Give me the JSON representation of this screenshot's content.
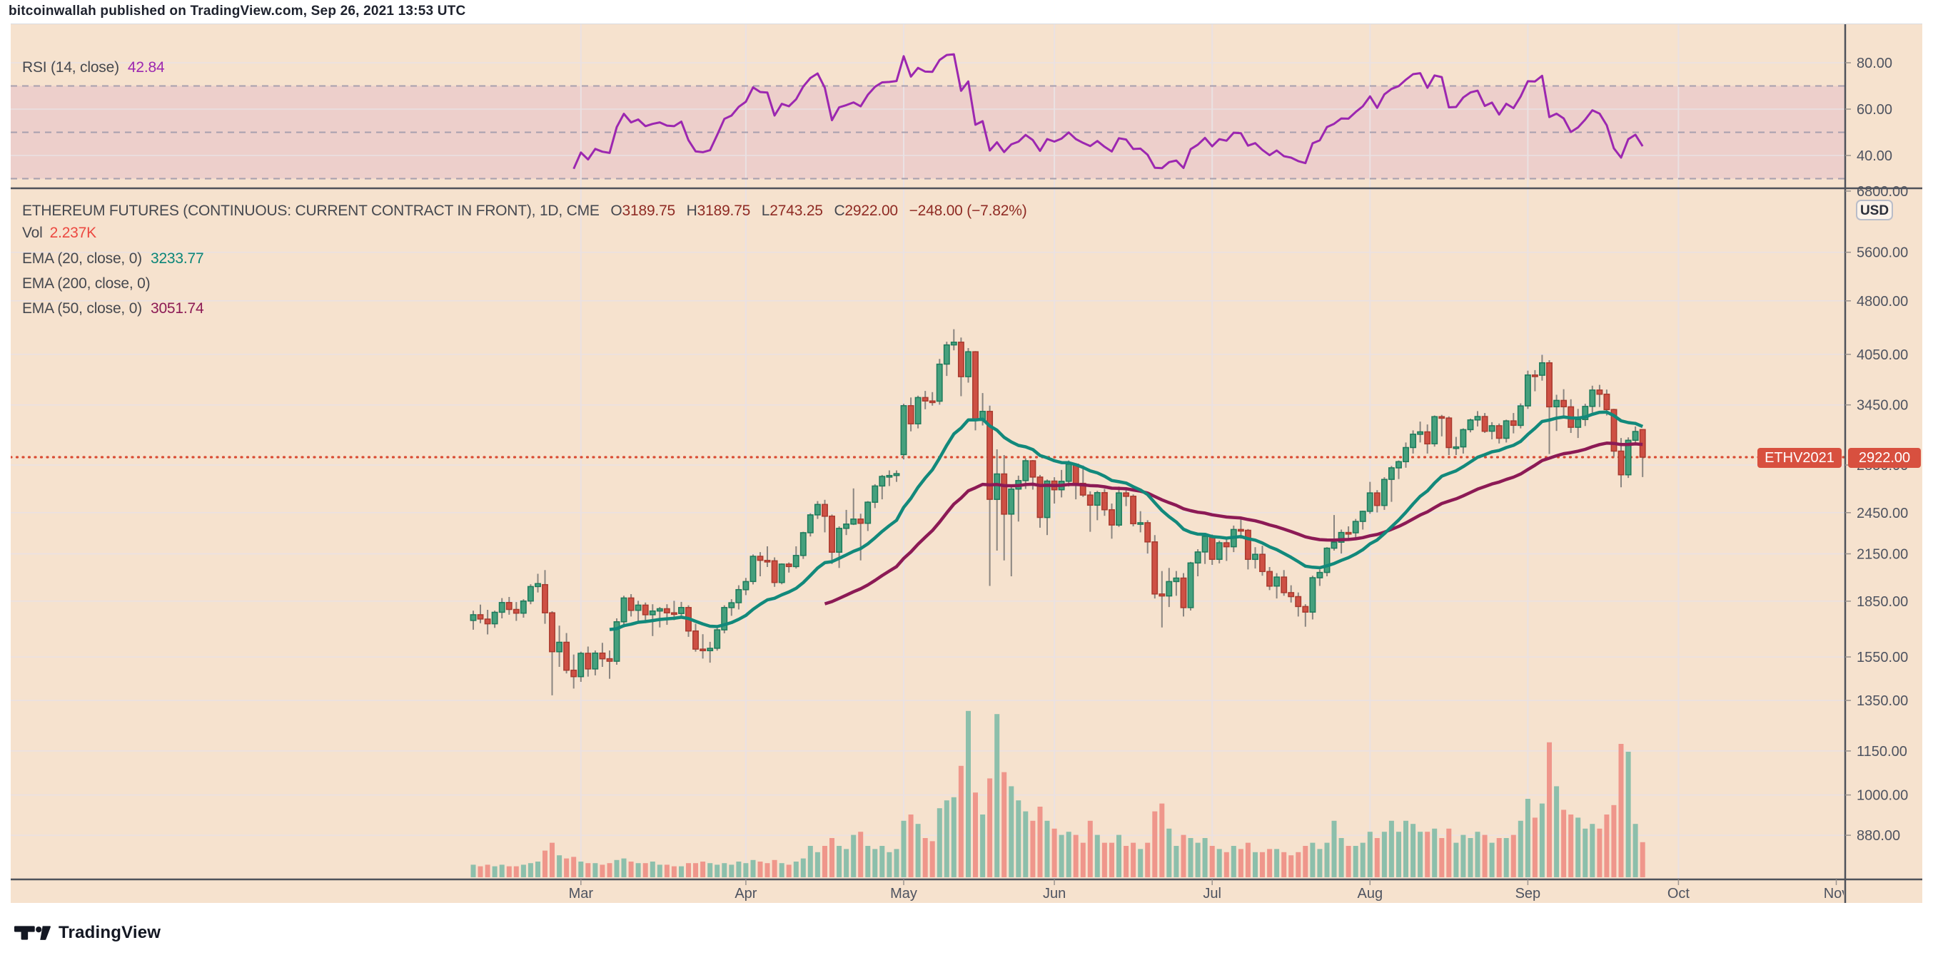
{
  "header": {
    "byline": "bitcoinwallah published on TradingView.com, Sep 26, 2021 13:53 UTC"
  },
  "rsi_pane": {
    "label": "RSI (14, close)",
    "value": "42.84",
    "ticks": [
      80,
      60,
      40
    ],
    "band_upper": 70,
    "band_mid": 50,
    "band_lower": 30
  },
  "main_pane": {
    "title": "ETHEREUM FUTURES (CONTINUOUS: CURRENT CONTRACT IN FRONT), 1D, CME",
    "ohlc": {
      "o_label": "O",
      "o": "3189.75",
      "h_label": "H",
      "h": "3189.75",
      "l_label": "L",
      "l": "2743.25",
      "c_label": "C",
      "c": "2922.00",
      "change": "−248.00 (−7.82%)"
    },
    "vol_label": "Vol",
    "vol_value": "2.237K",
    "ema20_label": "EMA (20, close, 0)",
    "ema20_value": "3233.77",
    "ema200_label": "EMA (200, close, 0)",
    "ema200_value": "",
    "ema50_label": "EMA (50, close, 0)",
    "ema50_value": "3051.74",
    "usd_button": "USD",
    "symbol_badge": "ETHV2021",
    "price_badge": "2922.00"
  },
  "logo": {
    "text": "TradingView"
  },
  "colors": {
    "background": "#f6e2ce",
    "grid": "#eae1e3",
    "separator": "#4f525a",
    "axis_text": "#4e5360",
    "tick_mark": "#9b948f",
    "candle_up_fill": "#45a07d",
    "candle_up_border": "#1d7a5b",
    "candle_down_fill": "#ce5044",
    "candle_down_border": "#a93a2e",
    "wick": "#8a8580",
    "vol_up": "#8cbfab",
    "vol_down": "#ef968b",
    "ema20": "#12897b",
    "ema50": "#8c1a55",
    "rsi_line": "#9c27b0",
    "rsi_band_fill": "rgba(156,39,176,0.10)",
    "rsi_dashed": "#a79fae",
    "last_price_line": "#d94b33",
    "badge": "#d8503f"
  },
  "chart_data": {
    "type": "candlestick",
    "symbol": "ETHV2021",
    "period": "1D",
    "exchange": "CME",
    "last_close": 2922.0,
    "prev_close": 3170.0,
    "price_ticks": [
      6800,
      5600,
      4800,
      4050,
      3450,
      2850,
      2450,
      2150,
      1850,
      1550,
      1350,
      1150,
      1000,
      880
    ],
    "rsi_ticks": [
      80,
      60,
      40
    ],
    "rsi_period": 14,
    "ema_periods": [
      20,
      200,
      50
    ],
    "rsi_last": 42.84,
    "ema20_last": 3233.77,
    "ema50_last": 3051.74,
    "vol_last_k": 2.237,
    "months": [
      {
        "label": "Mar",
        "bar": 15,
        "grid": true
      },
      {
        "label": "Apr",
        "bar": 38,
        "grid": true
      },
      {
        "label": "May",
        "bar": 60,
        "grid": true
      },
      {
        "label": "Jun",
        "bar": 81,
        "grid": true
      },
      {
        "label": "Jul",
        "bar": 103,
        "grid": true
      },
      {
        "label": "Aug",
        "bar": 125,
        "grid": true
      },
      {
        "label": "Sep",
        "bar": 147,
        "grid": true
      },
      {
        "label": "Oct",
        "bar": 168,
        "grid": true
      },
      {
        "label": "Nov",
        "bar": 190,
        "grid": false
      }
    ],
    "bars": [
      [
        1740,
        1795,
        1690,
        1772,
        0.8
      ],
      [
        1772,
        1830,
        1725,
        1748,
        0.7
      ],
      [
        1748,
        1800,
        1665,
        1722,
        0.8
      ],
      [
        1722,
        1795,
        1700,
        1786,
        0.7
      ],
      [
        1786,
        1868,
        1752,
        1842,
        0.8
      ],
      [
        1842,
        1875,
        1772,
        1802,
        0.7
      ],
      [
        1802,
        1845,
        1738,
        1781,
        0.7
      ],
      [
        1781,
        1862,
        1756,
        1851,
        0.8
      ],
      [
        1851,
        1952,
        1832,
        1938,
        0.9
      ],
      [
        1938,
        2018,
        1902,
        1956,
        1.0
      ],
      [
        1950,
        2042,
        1722,
        1783,
        1.7
      ],
      [
        1783,
        1792,
        1372,
        1576,
        2.2
      ],
      [
        1576,
        1712,
        1502,
        1624,
        1.4
      ],
      [
        1624,
        1672,
        1471,
        1486,
        1.2
      ],
      [
        1486,
        1562,
        1402,
        1456,
        1.3
      ],
      [
        1456,
        1576,
        1432,
        1568,
        1.0
      ],
      [
        1568,
        1602,
        1456,
        1492,
        0.9
      ],
      [
        1492,
        1582,
        1462,
        1569,
        0.9
      ],
      [
        1569,
        1621,
        1502,
        1541,
        0.8
      ],
      [
        1541,
        1582,
        1446,
        1529,
        0.9
      ],
      [
        1529,
        1752,
        1512,
        1733,
        1.1
      ],
      [
        1733,
        1882,
        1702,
        1869,
        1.2
      ],
      [
        1869,
        1892,
        1762,
        1797,
        1.0
      ],
      [
        1797,
        1852,
        1722,
        1827,
        0.9
      ],
      [
        1827,
        1842,
        1726,
        1772,
        0.9
      ],
      [
        1772,
        1832,
        1656,
        1793,
        1.0
      ],
      [
        1793,
        1816,
        1702,
        1806,
        0.8
      ],
      [
        1806,
        1832,
        1716,
        1783,
        0.8
      ],
      [
        1783,
        1852,
        1742,
        1779,
        0.7
      ],
      [
        1779,
        1846,
        1762,
        1813,
        0.7
      ],
      [
        1813,
        1826,
        1652,
        1683,
        0.9
      ],
      [
        1683,
        1722,
        1576,
        1589,
        0.9
      ],
      [
        1589,
        1666,
        1542,
        1581,
        1.0
      ],
      [
        1581,
        1626,
        1522,
        1593,
        0.9
      ],
      [
        1593,
        1702,
        1581,
        1689,
        0.8
      ],
      [
        1689,
        1826,
        1671,
        1813,
        0.9
      ],
      [
        1813,
        1862,
        1766,
        1841,
        0.8
      ],
      [
        1841,
        1946,
        1802,
        1919,
        1.0
      ],
      [
        1919,
        1992,
        1886,
        1969,
        0.9
      ],
      [
        1969,
        2146,
        1951,
        2133,
        1.1
      ],
      [
        2133,
        2162,
        2002,
        2106,
        1.0
      ],
      [
        2106,
        2202,
        2062,
        2103,
        0.9
      ],
      [
        2103,
        2126,
        1936,
        1963,
        1.1
      ],
      [
        1963,
        2086,
        1952,
        2081,
        0.9
      ],
      [
        2081,
        2092,
        2026,
        2065,
        0.8
      ],
      [
        2065,
        2202,
        2052,
        2139,
        1.0
      ],
      [
        2139,
        2306,
        2116,
        2299,
        1.2
      ],
      [
        2299,
        2446,
        2272,
        2433,
        2.0
      ],
      [
        2433,
        2542,
        2402,
        2515,
        1.6
      ],
      [
        2515,
        2552,
        2302,
        2423,
        2.0
      ],
      [
        2423,
        2436,
        2082,
        2161,
        2.5
      ],
      [
        2161,
        2346,
        2056,
        2331,
        2.0
      ],
      [
        2331,
        2472,
        2282,
        2363,
        1.8
      ],
      [
        2363,
        2646,
        2356,
        2401,
        2.7
      ],
      [
        2401,
        2442,
        2106,
        2369,
        2.9
      ],
      [
        2369,
        2542,
        2312,
        2533,
        2.0
      ],
      [
        2533,
        2682,
        2486,
        2667,
        1.8
      ],
      [
        2667,
        2762,
        2556,
        2749,
        2.0
      ],
      [
        2749,
        2802,
        2666,
        2757,
        1.6
      ],
      [
        2757,
        2802,
        2702,
        2773,
        1.8
      ],
      [
        2946,
        3462,
        2902,
        3441,
        3.6
      ],
      [
        3441,
        3532,
        3172,
        3249,
        4.0
      ],
      [
        3249,
        3552,
        3202,
        3531,
        3.4
      ],
      [
        3531,
        3606,
        3402,
        3493,
        2.5
      ],
      [
        3493,
        3592,
        3442,
        3491,
        2.3
      ],
      [
        3491,
        3992,
        3452,
        3926,
        4.4
      ],
      [
        3926,
        4216,
        3782,
        4173,
        4.9
      ],
      [
        4173,
        4386,
        4102,
        4209,
        5.1
      ],
      [
        4209,
        4272,
        3546,
        3773,
        7.1
      ],
      [
        3773,
        4132,
        3702,
        4083,
        10.6
      ],
      [
        4083,
        4092,
        3182,
        3283,
        5.4
      ],
      [
        3283,
        3582,
        3232,
        3379,
        4.0
      ],
      [
        3379,
        3442,
        1942,
        2556,
        6.3
      ],
      [
        2556,
        2996,
        2172,
        2771,
        10.4
      ],
      [
        2771,
        2942,
        2106,
        2439,
        6.7
      ],
      [
        2439,
        2672,
        2002,
        2641,
        5.8
      ],
      [
        2641,
        2756,
        2382,
        2713,
        4.9
      ],
      [
        2713,
        2912,
        2642,
        2889,
        4.2
      ],
      [
        2889,
        2896,
        2636,
        2743,
        3.6
      ],
      [
        2743,
        2762,
        2336,
        2413,
        4.5
      ],
      [
        2413,
        2722,
        2282,
        2709,
        3.6
      ],
      [
        2709,
        2742,
        2522,
        2635,
        3.1
      ],
      [
        2635,
        2806,
        2572,
        2707,
        2.7
      ],
      [
        2707,
        2892,
        2662,
        2858,
        2.9
      ],
      [
        2858,
        2862,
        2556,
        2689,
        2.7
      ],
      [
        2689,
        2846,
        2576,
        2591,
        2.2
      ],
      [
        2591,
        2622,
        2306,
        2509,
        3.6
      ],
      [
        2509,
        2626,
        2392,
        2611,
        2.7
      ],
      [
        2611,
        2642,
        2426,
        2473,
        2.2
      ],
      [
        2473,
        2522,
        2256,
        2356,
        2.2
      ],
      [
        2356,
        2662,
        2342,
        2609,
        2.7
      ],
      [
        2609,
        2642,
        2502,
        2581,
        2.0
      ],
      [
        2581,
        2596,
        2346,
        2366,
        2.2
      ],
      [
        2366,
        2462,
        2302,
        2373,
        1.8
      ],
      [
        2373,
        2392,
        2152,
        2233,
        2.2
      ],
      [
        2233,
        2282,
        1866,
        1893,
        4.2
      ],
      [
        1893,
        2036,
        1702,
        1881,
        4.7
      ],
      [
        1881,
        2056,
        1816,
        1969,
        3.1
      ],
      [
        1969,
        2036,
        1882,
        1991,
        2.0
      ],
      [
        1991,
        2022,
        1762,
        1813,
        2.7
      ],
      [
        1813,
        2096,
        1796,
        2089,
        2.5
      ],
      [
        2089,
        2182,
        2002,
        2163,
        2.2
      ],
      [
        2163,
        2292,
        2082,
        2273,
        2.5
      ],
      [
        2273,
        2286,
        2076,
        2113,
        2.0
      ],
      [
        2113,
        2242,
        2086,
        2227,
        1.8
      ],
      [
        2227,
        2252,
        2102,
        2199,
        1.6
      ],
      [
        2199,
        2352,
        2162,
        2323,
        2.0
      ],
      [
        2323,
        2412,
        2256,
        2317,
        1.8
      ],
      [
        2317,
        2326,
        2046,
        2113,
        2.2
      ],
      [
        2113,
        2196,
        2052,
        2147,
        1.6
      ],
      [
        2147,
        2206,
        2006,
        2033,
        1.6
      ],
      [
        2033,
        2062,
        1916,
        1941,
        1.8
      ],
      [
        1941,
        2022,
        1866,
        1997,
        1.8
      ],
      [
        1997,
        2042,
        1882,
        1901,
        1.6
      ],
      [
        1901,
        1946,
        1842,
        1877,
        1.4
      ],
      [
        1877,
        1902,
        1762,
        1819,
        1.6
      ],
      [
        1819,
        1832,
        1706,
        1787,
        2.0
      ],
      [
        1787,
        2006,
        1746,
        1993,
        2.2
      ],
      [
        1993,
        2046,
        1942,
        2027,
        1.8
      ],
      [
        2027,
        2196,
        2002,
        2189,
        2.2
      ],
      [
        2189,
        2432,
        2172,
        2231,
        3.6
      ],
      [
        2231,
        2322,
        2152,
        2301,
        2.5
      ],
      [
        2301,
        2346,
        2246,
        2299,
        2.0
      ],
      [
        2299,
        2402,
        2262,
        2383,
        2.0
      ],
      [
        2383,
        2466,
        2322,
        2461,
        2.2
      ],
      [
        2461,
        2702,
        2442,
        2609,
        2.9
      ],
      [
        2609,
        2632,
        2452,
        2507,
        2.5
      ],
      [
        2507,
        2742,
        2472,
        2723,
        2.9
      ],
      [
        2723,
        2842,
        2536,
        2825,
        3.6
      ],
      [
        2825,
        2892,
        2726,
        2881,
        2.9
      ],
      [
        2881,
        3062,
        2826,
        3013,
        3.6
      ],
      [
        3013,
        3182,
        2956,
        3143,
        3.4
      ],
      [
        3143,
        3272,
        3062,
        3167,
        2.9
      ],
      [
        3167,
        3242,
        2956,
        3049,
        2.9
      ],
      [
        3049,
        3336,
        3022,
        3323,
        3.1
      ],
      [
        3323,
        3342,
        3122,
        3309,
        2.5
      ],
      [
        3309,
        3326,
        2942,
        3013,
        3.1
      ],
      [
        3013,
        3116,
        2942,
        3019,
        2.2
      ],
      [
        3019,
        3202,
        2956,
        3189,
        2.7
      ],
      [
        3189,
        3302,
        3162,
        3289,
        2.5
      ],
      [
        3289,
        3382,
        3222,
        3325,
        2.9
      ],
      [
        3325,
        3362,
        3156,
        3173,
        2.7
      ],
      [
        3173,
        3266,
        3092,
        3229,
        2.2
      ],
      [
        3229,
        3252,
        3052,
        3103,
        2.5
      ],
      [
        3103,
        3292,
        3062,
        3279,
        2.5
      ],
      [
        3279,
        3362,
        3152,
        3233,
        2.7
      ],
      [
        3233,
        3466,
        3202,
        3439,
        3.6
      ],
      [
        3439,
        3846,
        3406,
        3793,
        5.0
      ],
      [
        3793,
        3853,
        3602,
        3791,
        3.8
      ],
      [
        3791,
        4044,
        3726,
        3943,
        4.7
      ],
      [
        3943,
        3976,
        2952,
        3429,
        8.6
      ],
      [
        3429,
        3562,
        3176,
        3499,
        5.8
      ],
      [
        3499,
        3626,
        3322,
        3429,
        4.3
      ],
      [
        3429,
        3512,
        3156,
        3213,
        4.0
      ],
      [
        3213,
        3406,
        3106,
        3293,
        3.8
      ],
      [
        3293,
        3462,
        3226,
        3433,
        3.1
      ],
      [
        3433,
        3666,
        3366,
        3616,
        3.4
      ],
      [
        3616,
        3676,
        3426,
        3569,
        3.1
      ],
      [
        3569,
        3622,
        3336,
        3399,
        4.0
      ],
      [
        3399,
        3406,
        2926,
        2979,
        4.6
      ],
      [
        2979,
        3106,
        2656,
        2763,
        8.5
      ],
      [
        2763,
        3112,
        2736,
        3083,
        8.0
      ],
      [
        3083,
        3222,
        3042,
        3170,
        3.4
      ],
      [
        3189.75,
        3189.75,
        2743.25,
        2922,
        2.237
      ]
    ]
  }
}
